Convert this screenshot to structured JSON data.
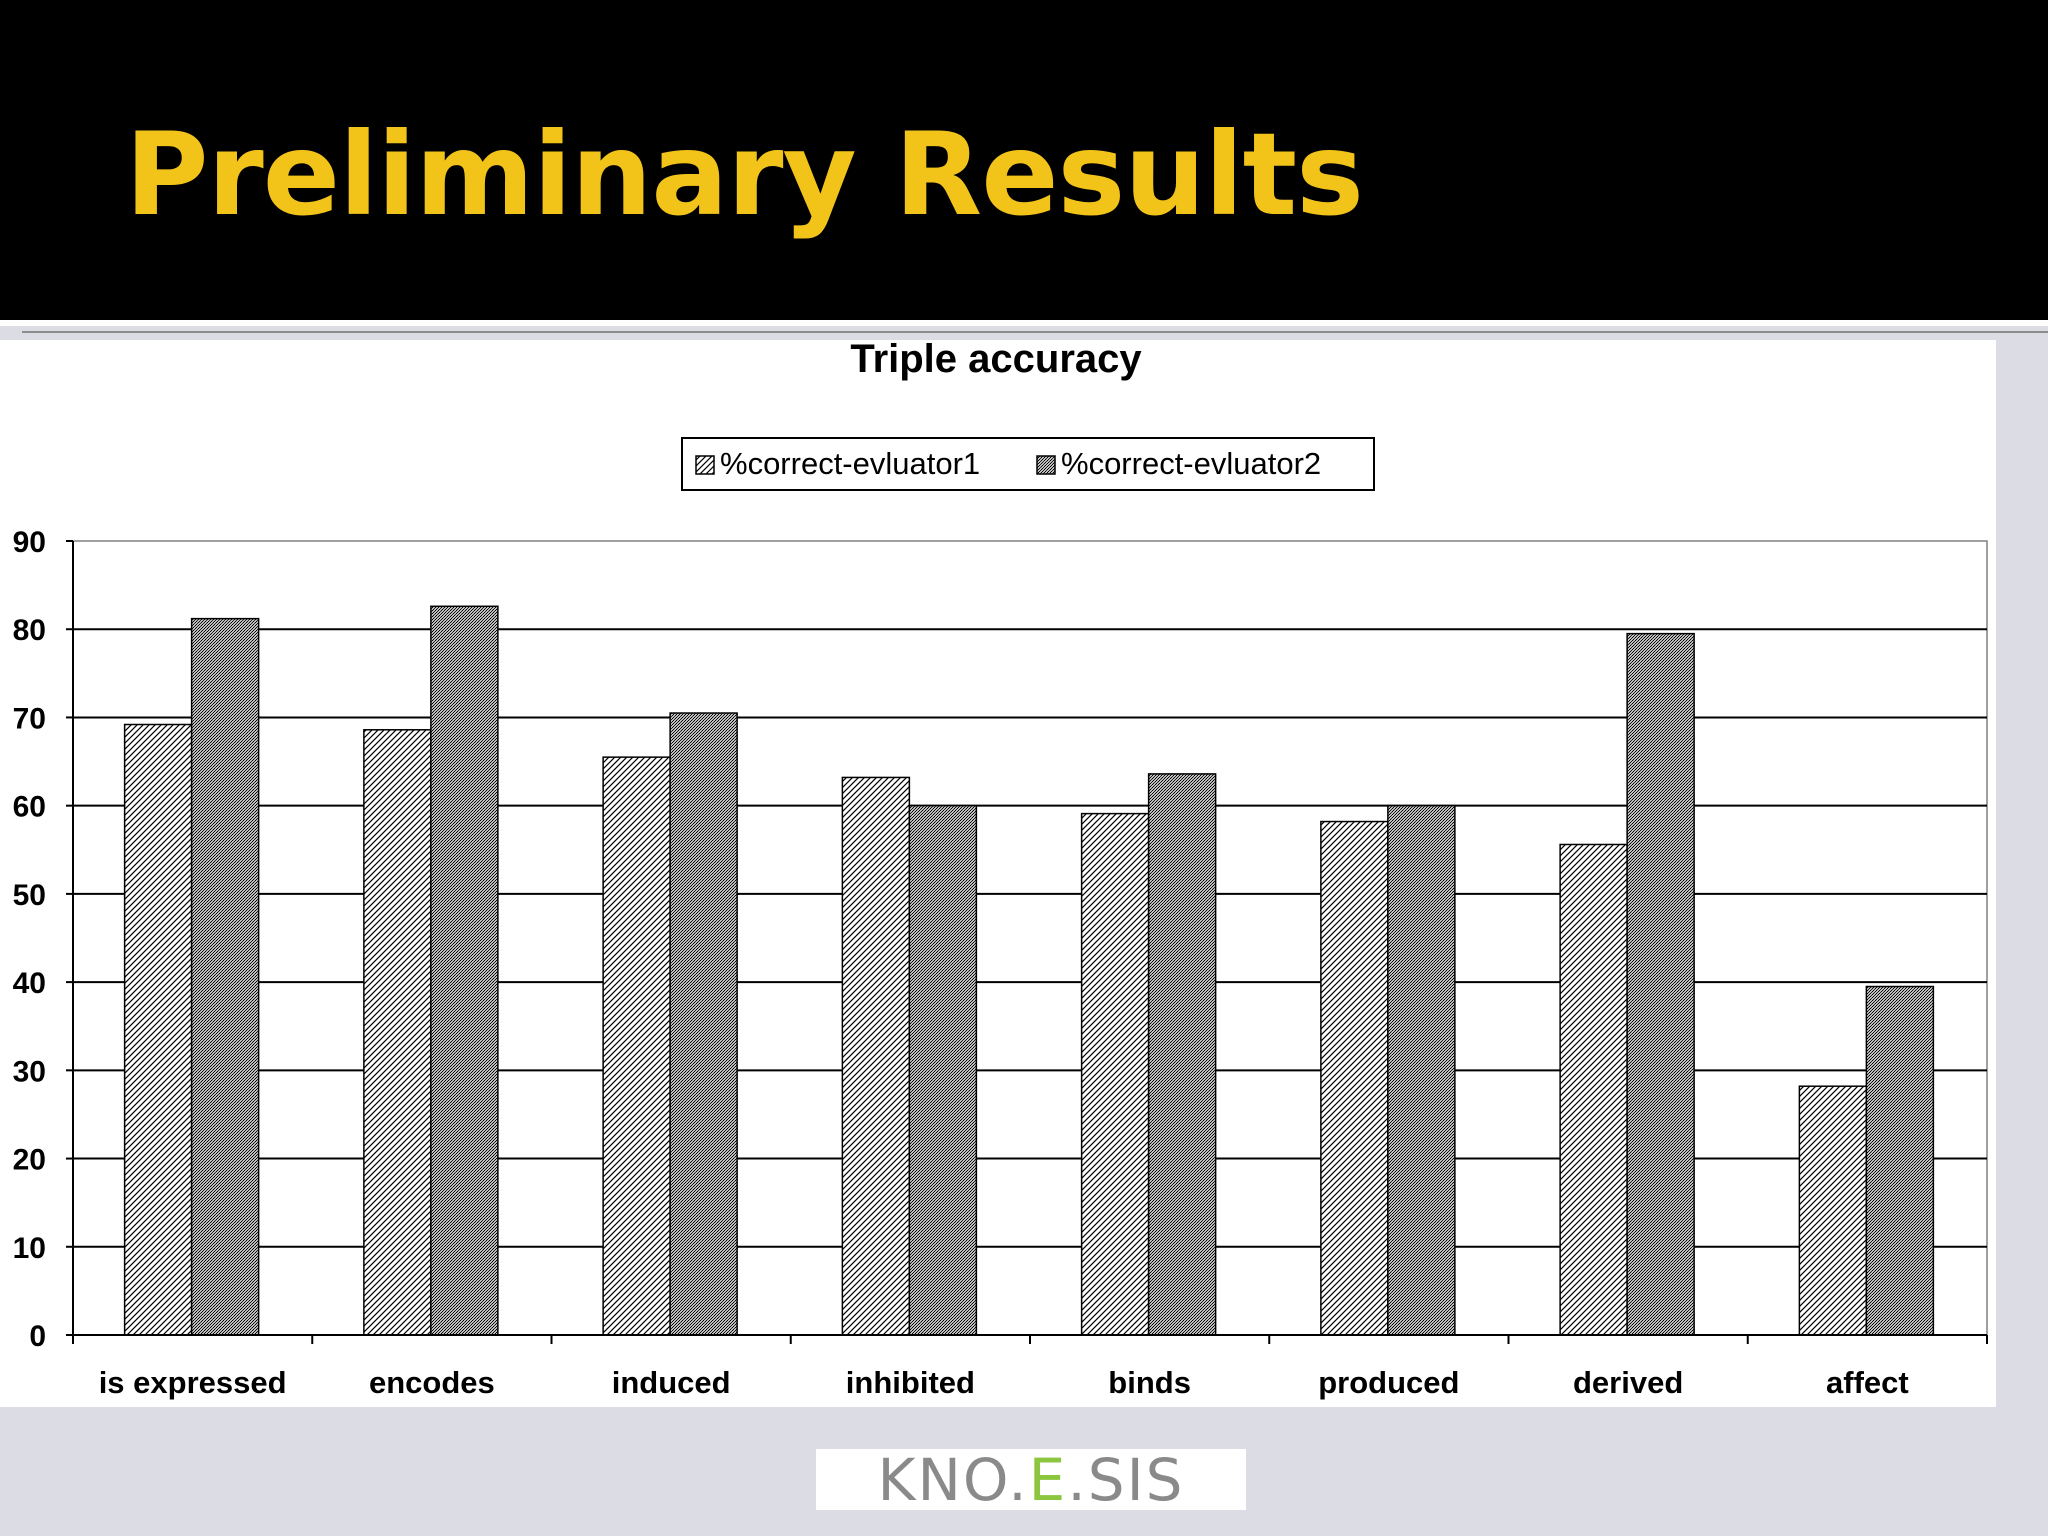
{
  "slide": {
    "title": "Preliminary Results"
  },
  "logo": {
    "part1": "KNO.",
    "part2": "E",
    "part3": ".SIS"
  },
  "chart_data": {
    "type": "bar",
    "title": "Triple accuracy",
    "xlabel": "",
    "ylabel": "",
    "ylim": [
      0,
      90
    ],
    "yticks": [
      0,
      10,
      20,
      30,
      40,
      50,
      60,
      70,
      80,
      90
    ],
    "grid": true,
    "legend_position": "top-center",
    "categories": [
      "is expressed",
      "encodes",
      "induced",
      "inhibited",
      "binds",
      "produced",
      "derived",
      "affect"
    ],
    "series": [
      {
        "name": "%correct-evluator1",
        "pattern": "diagonal-hatch",
        "values": [
          69.2,
          68.6,
          65.5,
          63.2,
          59.1,
          58.2,
          55.6,
          28.2
        ]
      },
      {
        "name": "%correct-evluator2",
        "pattern": "dense-dots",
        "values": [
          81.2,
          82.6,
          70.5,
          60.0,
          63.6,
          60.0,
          79.5,
          39.5
        ]
      }
    ]
  }
}
